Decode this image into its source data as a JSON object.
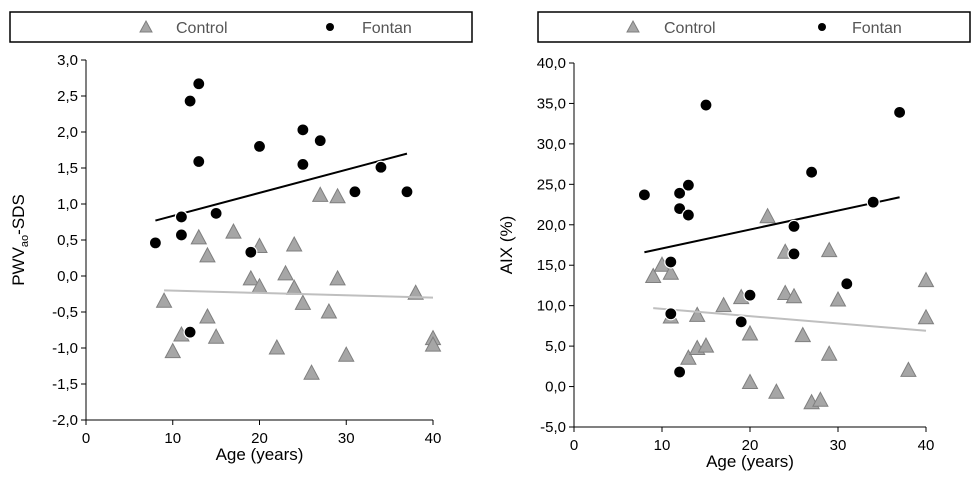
{
  "colors": {
    "control_fill": "#a6a6a6",
    "control_stroke": "#7f7f7f",
    "fontan_fill": "#000000",
    "fontan_stroke": "#ffffff",
    "control_trend": "#bfbfbf",
    "fontan_trend": "#000000"
  },
  "legend": {
    "control_label": "Control",
    "fontan_label": "Fontan"
  },
  "chart_data": [
    {
      "type": "scatter",
      "xlabel": "Age (years)",
      "ylabel": "PWV",
      "ylabel_sub": "ao",
      "ylabel_suffix": "-SDS",
      "xlim": [
        0,
        40
      ],
      "ylim": [
        -2.0,
        3.0
      ],
      "xticks": [
        0,
        10,
        20,
        30,
        40
      ],
      "xtick_labels": [
        "0",
        "10",
        "20",
        "30",
        "40"
      ],
      "yticks": [
        -2.0,
        -1.5,
        -1.0,
        -0.5,
        0.0,
        0.5,
        1.0,
        1.5,
        2.0,
        2.5,
        3.0
      ],
      "ytick_labels": [
        "-2,0",
        "-1,5",
        "-1,0",
        "-0,5",
        "0,0",
        "0,5",
        "1,0",
        "1,5",
        "2,0",
        "2,5",
        "3,0"
      ],
      "grid": false,
      "legend_position": "top",
      "series": [
        {
          "name": "Control",
          "marker": "triangle",
          "points": [
            [
              9,
              -0.35
            ],
            [
              10,
              -1.05
            ],
            [
              11,
              -0.82
            ],
            [
              13,
              0.53
            ],
            [
              14,
              0.28
            ],
            [
              14,
              -0.57
            ],
            [
              15,
              -0.85
            ],
            [
              17,
              0.61
            ],
            [
              19,
              -0.04
            ],
            [
              20,
              0.41
            ],
            [
              20,
              -0.15
            ],
            [
              22,
              -1.0
            ],
            [
              23,
              0.03
            ],
            [
              24,
              0.43
            ],
            [
              24,
              -0.17
            ],
            [
              25,
              -0.38
            ],
            [
              26,
              -1.35
            ],
            [
              27,
              1.12
            ],
            [
              28,
              -0.5
            ],
            [
              29,
              1.1
            ],
            [
              29,
              -0.04
            ],
            [
              30,
              -1.1
            ],
            [
              38,
              -0.24
            ],
            [
              40,
              -0.87
            ],
            [
              40,
              -0.96
            ]
          ],
          "trend": {
            "x": [
              9,
              40
            ],
            "y": [
              -0.2,
              -0.3
            ]
          }
        },
        {
          "name": "Fontan",
          "marker": "circle",
          "points": [
            [
              8,
              0.46
            ],
            [
              11,
              0.82
            ],
            [
              11,
              0.57
            ],
            [
              12,
              2.43
            ],
            [
              12,
              -0.78
            ],
            [
              13,
              2.67
            ],
            [
              13,
              1.59
            ],
            [
              15,
              0.87
            ],
            [
              19,
              0.33
            ],
            [
              20,
              1.8
            ],
            [
              25,
              2.03
            ],
            [
              25,
              1.55
            ],
            [
              27,
              1.88
            ],
            [
              31,
              1.17
            ],
            [
              34,
              1.51
            ],
            [
              37,
              1.17
            ]
          ],
          "trend": {
            "x": [
              8,
              37
            ],
            "y": [
              0.77,
              1.7
            ]
          }
        }
      ]
    },
    {
      "type": "scatter",
      "xlabel": "Age (years)",
      "ylabel": "AIX (%)",
      "xlim": [
        0,
        40
      ],
      "ylim": [
        -5.0,
        40.0
      ],
      "xticks": [
        0,
        10,
        20,
        30,
        40
      ],
      "xtick_labels": [
        "0",
        "10",
        "20",
        "30",
        "40"
      ],
      "yticks": [
        -5,
        0,
        5,
        10,
        15,
        20,
        25,
        30,
        35,
        40
      ],
      "ytick_labels": [
        "-5,0",
        "0,0",
        "5,0",
        "10,0",
        "15,0",
        "20,0",
        "25,0",
        "30,0",
        "35,0",
        "40,0"
      ],
      "grid": false,
      "legend_position": "top",
      "series": [
        {
          "name": "Control",
          "marker": "triangle",
          "points": [
            [
              9,
              13.6
            ],
            [
              10,
              15.0
            ],
            [
              11,
              14.0
            ],
            [
              11,
              8.6
            ],
            [
              13,
              3.5
            ],
            [
              14,
              8.8
            ],
            [
              14,
              4.7
            ],
            [
              15,
              5.0
            ],
            [
              17,
              10.0
            ],
            [
              19,
              11.0
            ],
            [
              20,
              6.5
            ],
            [
              20,
              0.5
            ],
            [
              22,
              21.0
            ],
            [
              23,
              -0.7
            ],
            [
              24,
              11.5
            ],
            [
              24,
              16.6
            ],
            [
              25,
              11.1
            ],
            [
              26,
              6.3
            ],
            [
              27,
              -2.0
            ],
            [
              28,
              -1.7
            ],
            [
              29,
              16.8
            ],
            [
              29,
              4.0
            ],
            [
              30,
              10.7
            ],
            [
              38,
              2.0
            ],
            [
              40,
              13.1
            ],
            [
              40,
              8.5
            ]
          ],
          "trend": {
            "x": [
              9,
              40
            ],
            "y": [
              9.7,
              6.9
            ]
          }
        },
        {
          "name": "Fontan",
          "marker": "circle",
          "points": [
            [
              8,
              23.7
            ],
            [
              11,
              15.4
            ],
            [
              11,
              9.0
            ],
            [
              12,
              23.9
            ],
            [
              12,
              22.0
            ],
            [
              12,
              1.8
            ],
            [
              13,
              24.9
            ],
            [
              13,
              21.2
            ],
            [
              15,
              34.8
            ],
            [
              19,
              8.0
            ],
            [
              20,
              11.3
            ],
            [
              25,
              19.8
            ],
            [
              25,
              16.4
            ],
            [
              27,
              26.5
            ],
            [
              31,
              12.7
            ],
            [
              34,
              22.8
            ],
            [
              37,
              33.9
            ]
          ],
          "trend": {
            "x": [
              8,
              37
            ],
            "y": [
              16.6,
              23.4
            ]
          }
        }
      ]
    }
  ]
}
